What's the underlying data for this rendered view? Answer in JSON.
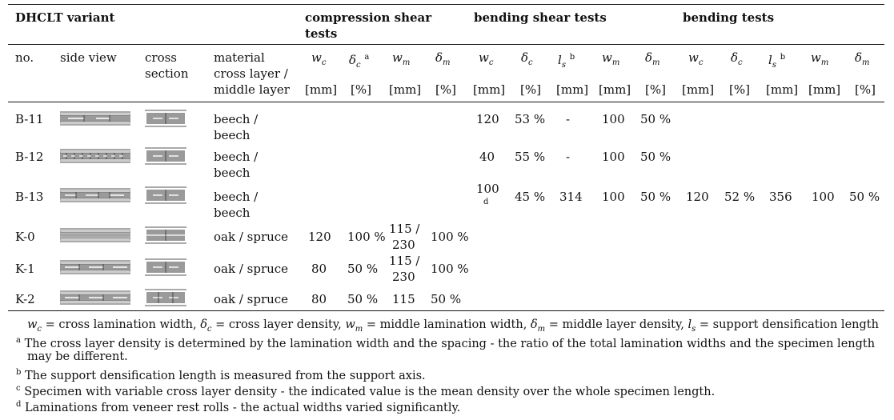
{
  "table": {
    "title_top": "DHCLT variant",
    "groups": {
      "compression": [
        "compression shear",
        "tests"
      ],
      "bending_shear": "bending shear tests",
      "bending": "bending tests"
    },
    "col_headers": {
      "no": "no.",
      "side_view": "side view",
      "cross_section": [
        "cross",
        "section"
      ],
      "material": [
        "material",
        "cross layer /",
        "middle layer"
      ]
    },
    "sym": {
      "wc": "w",
      "wc_sub": "c",
      "dc": "δ",
      "dc_sub": "c",
      "wm": "w",
      "wm_sub": "m",
      "dm": "δ",
      "dm_sub": "m",
      "ls": "l",
      "ls_sub": "s",
      "note_a": "a",
      "note_b": "b",
      "note_d": "d"
    },
    "units": {
      "mm": "[mm]",
      "pct": "[%]"
    },
    "rows": [
      {
        "no": "B-11",
        "mat1": "beech /",
        "mat2": "beech",
        "bs_wc": "120",
        "bs_dc": "53 %",
        "bs_ls": "-",
        "bs_wm": "100",
        "bs_dm": "50 %"
      },
      {
        "no": "B-12",
        "mat1": "beech /",
        "mat2": "beech",
        "bs_wc": "40",
        "bs_dc": "55 %",
        "bs_ls": "-",
        "bs_wm": "100",
        "bs_dm": "50 %"
      },
      {
        "no": "B-13",
        "mat1": "beech /",
        "mat2": "beech",
        "bs_wc": "100",
        "bs_wc_note": "d",
        "bs_dc": "45 %",
        "bs_ls": "314",
        "bs_wm": "100",
        "bs_dm": "50 %",
        "b_wc": "120",
        "b_dc": "52 %",
        "b_ls": "356",
        "b_wm": "100",
        "b_dm": "50 %"
      },
      {
        "no": "K-0",
        "mat1": "oak / spruce",
        "cs_wc": "120",
        "cs_dc": "100 %",
        "cs_wm1": "115 /",
        "cs_wm2": "230",
        "cs_dm": "100 %"
      },
      {
        "no": "K-1",
        "mat1": "oak / spruce",
        "cs_wc": "80",
        "cs_dc": "50 %",
        "cs_wm1": "115 /",
        "cs_wm2": "230",
        "cs_dm": "100 %"
      },
      {
        "no": "K-2",
        "mat1": "oak / spruce",
        "cs_wc": "80",
        "cs_dc": "50 %",
        "cs_wm": "115",
        "cs_dm": "50 %"
      }
    ]
  },
  "footnotes": {
    "legend": "w c = cross lamination width, δc = cross layer density, wm = middle lamination width, δm = middle layer density, ls = support densification length",
    "legend_parts": {
      "p1": " = cross lamination width, ",
      "p2": " = cross layer density, ",
      "p3": " = middle lamination width, ",
      "p4": " = middle layer density, ",
      "p5": " = support densification length"
    },
    "a_1": "The cross layer density is determined by the lamination width and the spacing - the ratio of the total lamination widths and the specimen length",
    "a_2": "may be different.",
    "b": "The support densification length is measured from the support axis.",
    "c": "Specimen with variable cross layer density - the indicated value is the mean density over the whole specimen length.",
    "d": "Laminations from veneer rest rolls - the actual widths varied significantly.",
    "marks": {
      "a": "a",
      "b": "b",
      "c": "c",
      "d": "d"
    }
  }
}
